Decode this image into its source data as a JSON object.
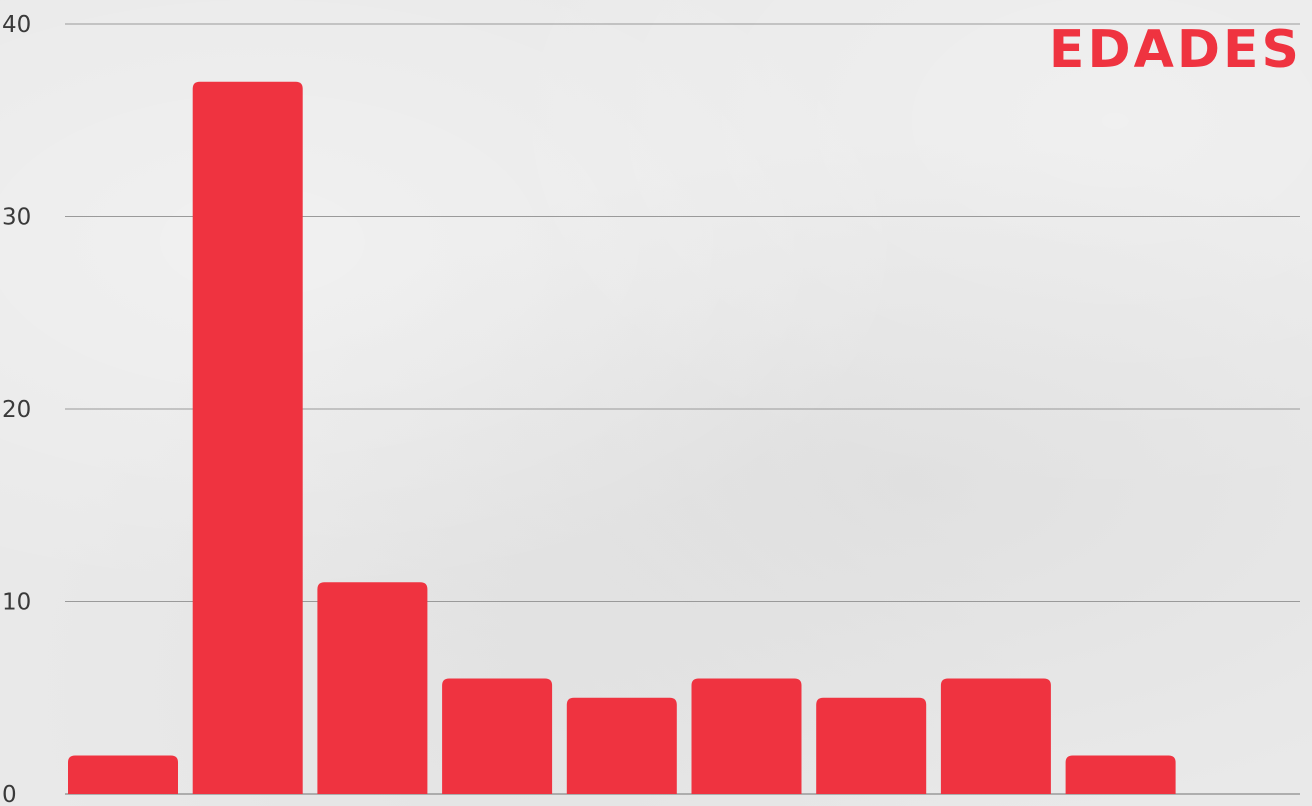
{
  "chart_data": {
    "type": "bar",
    "title": "EDADES",
    "categories": [
      "",
      "",
      "",
      "",
      "",
      "",
      "",
      "",
      ""
    ],
    "values": [
      2,
      37,
      11,
      6,
      5,
      6,
      5,
      6,
      2
    ],
    "ylim": [
      0,
      40
    ],
    "yticks": [
      "0",
      "10",
      "20",
      "30",
      "40"
    ],
    "ytick_values": [
      0,
      10,
      20,
      30,
      40
    ],
    "xlabel": "",
    "ylabel": "",
    "grid": true,
    "legend": "none",
    "bar_color": "#ef3340",
    "title_color": "#ef3340",
    "grid_color": "#9a9a9a"
  }
}
